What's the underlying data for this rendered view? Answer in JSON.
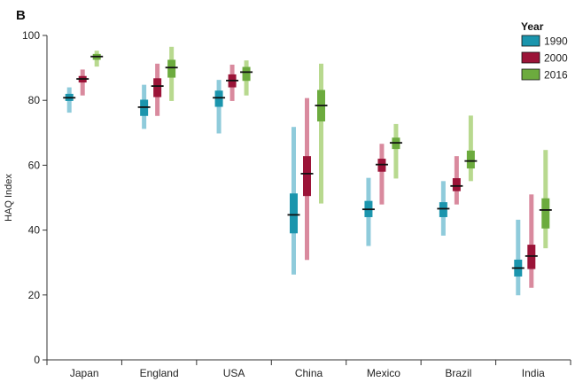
{
  "chart_data": {
    "type": "range-bar",
    "panel_label": "B",
    "ylabel": "HAQ Index",
    "xlabel": "",
    "ylim": [
      0,
      100
    ],
    "yticks": [
      0,
      20,
      40,
      60,
      80,
      100
    ],
    "legend_title": "Year",
    "legend_position": "top-right",
    "categories": [
      "Japan",
      "England",
      "USA",
      "China",
      "Mexico",
      "Brazil",
      "India"
    ],
    "series": [
      {
        "name": "1990",
        "color": "#1b95ad",
        "light_color": "#8fcbdb",
        "values": [
          {
            "low": 76.2,
            "q_low": 79.8,
            "median": 80.8,
            "q_high": 82.0,
            "high": 84.0
          },
          {
            "low": 71.2,
            "q_low": 75.2,
            "median": 77.9,
            "q_high": 80.2,
            "high": 84.8
          },
          {
            "low": 69.8,
            "q_low": 78.0,
            "median": 80.8,
            "q_high": 83.0,
            "high": 86.3
          },
          {
            "low": 26.3,
            "q_low": 39.0,
            "median": 44.7,
            "q_high": 51.3,
            "high": 71.8
          },
          {
            "low": 35.1,
            "q_low": 44.0,
            "median": 46.4,
            "q_high": 49.0,
            "high": 56.1
          },
          {
            "low": 38.3,
            "q_low": 44.0,
            "median": 46.6,
            "q_high": 48.6,
            "high": 55.1
          },
          {
            "low": 19.9,
            "q_low": 25.7,
            "median": 28.3,
            "q_high": 30.9,
            "high": 43.2
          }
        ]
      },
      {
        "name": "2000",
        "color": "#9b1438",
        "light_color": "#d98a9e",
        "values": [
          {
            "low": 81.5,
            "q_low": 85.5,
            "median": 86.6,
            "q_high": 87.5,
            "high": 89.5
          },
          {
            "low": 75.2,
            "q_low": 81.0,
            "median": 84.4,
            "q_high": 86.8,
            "high": 91.3
          },
          {
            "low": 79.8,
            "q_low": 84.0,
            "median": 86.1,
            "q_high": 88.0,
            "high": 91.0
          },
          {
            "low": 30.8,
            "q_low": 50.5,
            "median": 57.4,
            "q_high": 62.8,
            "high": 80.7
          },
          {
            "low": 47.9,
            "q_low": 58.0,
            "median": 60.2,
            "q_high": 62.0,
            "high": 66.6
          },
          {
            "low": 47.9,
            "q_low": 52.0,
            "median": 53.6,
            "q_high": 56.0,
            "high": 62.8
          },
          {
            "low": 22.2,
            "q_low": 28.0,
            "median": 32.0,
            "q_high": 35.5,
            "high": 51.0
          }
        ]
      },
      {
        "name": "2016",
        "color": "#6cab3e",
        "light_color": "#b8d98f",
        "values": [
          {
            "low": 90.4,
            "q_low": 92.5,
            "median": 93.5,
            "q_high": 94.3,
            "high": 95.3
          },
          {
            "low": 79.8,
            "q_low": 87.0,
            "median": 90.1,
            "q_high": 92.5,
            "high": 96.5
          },
          {
            "low": 81.5,
            "q_low": 86.0,
            "median": 88.7,
            "q_high": 90.3,
            "high": 92.3
          },
          {
            "low": 48.2,
            "q_low": 73.5,
            "median": 78.4,
            "q_high": 83.2,
            "high": 91.3
          },
          {
            "low": 55.9,
            "q_low": 65.0,
            "median": 66.9,
            "q_high": 68.5,
            "high": 72.7
          },
          {
            "low": 55.1,
            "q_low": 59.0,
            "median": 61.3,
            "q_high": 64.5,
            "high": 75.3
          },
          {
            "low": 34.4,
            "q_low": 40.5,
            "median": 46.2,
            "q_high": 49.8,
            "high": 64.7
          }
        ]
      }
    ]
  }
}
